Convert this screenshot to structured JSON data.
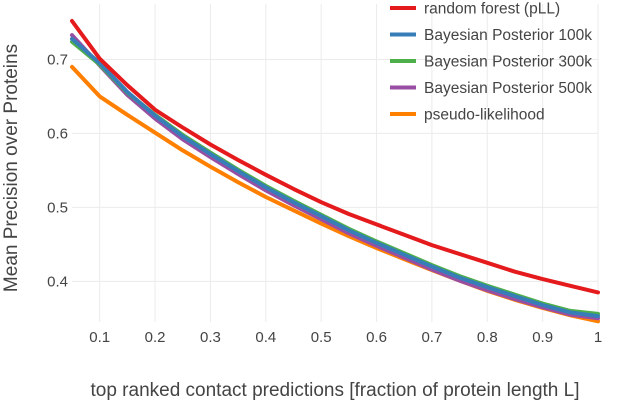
{
  "chart_data": {
    "type": "line",
    "title": "",
    "xlabel": "top ranked contact predictions [fraction of protein length L]",
    "ylabel": "Mean Precision over Proteins",
    "xlim": [
      0.05,
      1.0
    ],
    "ylim": [
      0.345,
      0.775
    ],
    "x_ticks": [
      0.1,
      0.2,
      0.3,
      0.4,
      0.5,
      0.6,
      0.7,
      0.8,
      0.9,
      1.0
    ],
    "x_tick_labels": [
      "0.1",
      "0.2",
      "0.3",
      "0.4",
      "0.5",
      "0.6",
      "0.7",
      "0.8",
      "0.9",
      "1"
    ],
    "y_ticks": [
      0.4,
      0.5,
      0.6,
      0.7
    ],
    "y_tick_labels": [
      "0.4",
      "0.5",
      "0.6",
      "0.7"
    ],
    "grid": true,
    "legend_position": "top-right",
    "x": [
      0.05,
      0.1,
      0.15,
      0.2,
      0.25,
      0.3,
      0.35,
      0.4,
      0.45,
      0.5,
      0.55,
      0.6,
      0.65,
      0.7,
      0.75,
      0.8,
      0.85,
      0.9,
      0.95,
      1.0
    ],
    "series": [
      {
        "name": "random forest (pLL)",
        "color": "#e41a1c",
        "values": [
          0.752,
          0.701,
          0.665,
          0.632,
          0.608,
          0.585,
          0.564,
          0.544,
          0.525,
          0.507,
          0.491,
          0.477,
          0.463,
          0.449,
          0.437,
          0.425,
          0.413,
          0.403,
          0.394,
          0.385
        ]
      },
      {
        "name": "Bayesian Posterior 100k",
        "color": "#377eb8",
        "values": [
          0.728,
          0.695,
          0.656,
          0.624,
          0.596,
          0.572,
          0.549,
          0.527,
          0.507,
          0.488,
          0.469,
          0.452,
          0.436,
          0.42,
          0.405,
          0.392,
          0.38,
          0.368,
          0.358,
          0.353
        ]
      },
      {
        "name": "Bayesian Posterior 300k",
        "color": "#4daf4a",
        "values": [
          0.724,
          0.693,
          0.655,
          0.625,
          0.598,
          0.574,
          0.551,
          0.529,
          0.509,
          0.49,
          0.471,
          0.454,
          0.438,
          0.422,
          0.407,
          0.394,
          0.382,
          0.37,
          0.36,
          0.356
        ]
      },
      {
        "name": "Bayesian Posterior 500k",
        "color": "#984ea3",
        "values": [
          0.733,
          0.692,
          0.652,
          0.62,
          0.592,
          0.568,
          0.545,
          0.523,
          0.503,
          0.484,
          0.465,
          0.448,
          0.432,
          0.416,
          0.401,
          0.388,
          0.376,
          0.365,
          0.355,
          0.35
        ]
      },
      {
        "name": "pseudo-likelihood",
        "color": "#ff7f00",
        "values": [
          0.69,
          0.65,
          0.625,
          0.601,
          0.577,
          0.555,
          0.534,
          0.514,
          0.496,
          0.478,
          0.461,
          0.445,
          0.43,
          0.415,
          0.401,
          0.387,
          0.375,
          0.364,
          0.354,
          0.346
        ]
      }
    ]
  }
}
